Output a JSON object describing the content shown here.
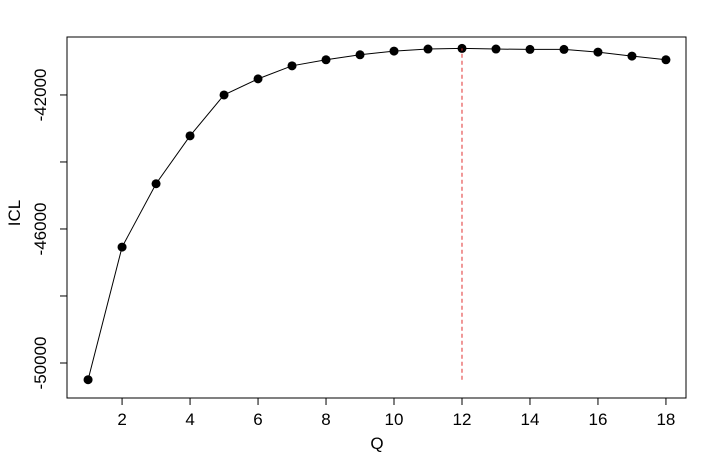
{
  "chart_data": {
    "type": "line",
    "x_label": "Q",
    "y_label": "ICL",
    "x": [
      1,
      2,
      3,
      4,
      5,
      6,
      7,
      8,
      9,
      10,
      11,
      12,
      13,
      14,
      15,
      16,
      17,
      18
    ],
    "series": [
      {
        "color": "#000000",
        "values": [
          -50500,
          -46540,
          -44650,
          -43220,
          -42000,
          -41520,
          -41130,
          -40950,
          -40800,
          -40690,
          -40630,
          -40610,
          -40630,
          -40640,
          -40640,
          -40720,
          -40840,
          -40950
        ]
      }
    ],
    "xlim": [
      0.38,
      18.59
    ],
    "ylim": [
      -51045,
      -40270
    ],
    "xticks": [
      2,
      4,
      6,
      8,
      10,
      12,
      14,
      16,
      18
    ],
    "yticks": [
      -50000,
      -46000,
      -42000
    ],
    "yticks_unlabeled": [
      -48000,
      -44000
    ],
    "vline": {
      "x": 12,
      "color": "#e03030"
    }
  }
}
